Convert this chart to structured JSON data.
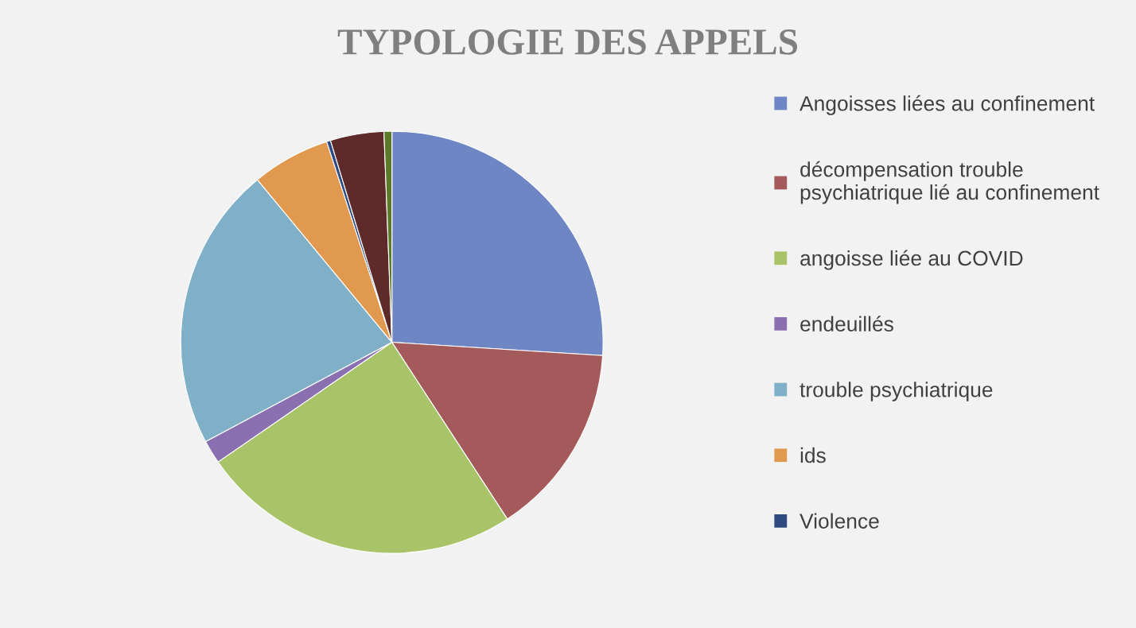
{
  "chart_data": {
    "type": "pie",
    "title": "TYPOLOGIE DES APPELS",
    "categories": [
      "Angoisses liées au confinement",
      "décompensation trouble psychiatrique lié au confinement",
      "angoisse liée au COVID",
      "endeuillés",
      "trouble psychiatrique",
      "ids",
      "Violence",
      null,
      null
    ],
    "values": [
      26,
      14.8,
      24.6,
      1.8,
      21.8,
      6,
      0.3,
      4.1,
      0.6
    ],
    "colors": [
      "#6f86c4",
      "#a45a5a",
      "#a9c468",
      "#8a70b0",
      "#7fb0c8",
      "#e0994f",
      "#2f4a80",
      "#5e2a2a",
      "#5b7a2a"
    ],
    "legend": "right"
  }
}
